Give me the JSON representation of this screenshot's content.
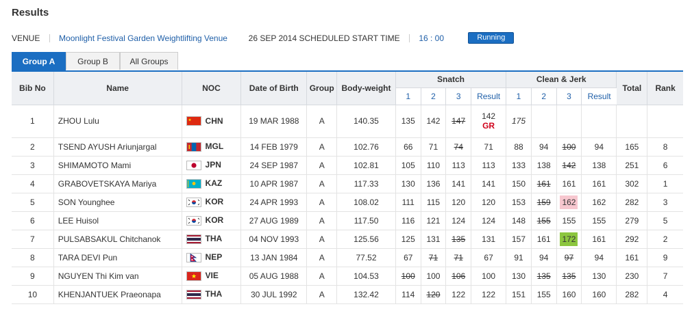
{
  "page": {
    "title": "Results"
  },
  "venue": {
    "label": "VENUE",
    "name": "Moonlight Festival Garden Weightlifting Venue",
    "date_text": "26 SEP 2014 SCHEDULED START TIME",
    "start_time": "16 : 00",
    "status": "Running"
  },
  "tabs": [
    {
      "label": "Group A",
      "active": true
    },
    {
      "label": "Group B",
      "active": false
    },
    {
      "label": "All Groups",
      "active": false
    }
  ],
  "headers": {
    "bib": "Bib No",
    "name": "Name",
    "noc": "NOC",
    "dob": "Date of Birth",
    "group": "Group",
    "bodyweight": "Body-weight",
    "snatch": "Snatch",
    "cj": "Clean & Jerk",
    "total": "Total",
    "rank": "Rank",
    "a1": "1",
    "a2": "2",
    "a3": "3",
    "result": "Result"
  },
  "rows": [
    {
      "bib": "1",
      "name": "ZHOU Lulu",
      "noc": "CHN",
      "flag": "chn",
      "dob": "19 MAR 1988",
      "group": "A",
      "bw": "140.35",
      "s1": "135",
      "s2": "142",
      "s3": "147",
      "s3_fail": true,
      "s_res": "142",
      "s_record": "GR",
      "c1": "175",
      "c1_italic": true,
      "c2": "",
      "c3": "",
      "c_res": "",
      "total": "",
      "rank": ""
    },
    {
      "bib": "2",
      "name": "TSEND AYUSH Ariunjargal",
      "noc": "MGL",
      "flag": "mgl",
      "dob": "14 FEB 1979",
      "group": "A",
      "bw": "102.76",
      "s1": "66",
      "s2": "71",
      "s3": "74",
      "s3_fail": true,
      "s_res": "71",
      "c1": "88",
      "c2": "94",
      "c3": "100",
      "c3_fail": true,
      "c_res": "94",
      "total": "165",
      "rank": "8"
    },
    {
      "bib": "3",
      "name": "SHIMAMOTO Mami",
      "noc": "JPN",
      "flag": "jpn",
      "dob": "24 SEP 1987",
      "group": "A",
      "bw": "102.81",
      "s1": "105",
      "s2": "110",
      "s3": "113",
      "s_res": "113",
      "c1": "133",
      "c2": "138",
      "c3": "142",
      "c3_fail": true,
      "c_res": "138",
      "total": "251",
      "rank": "6"
    },
    {
      "bib": "4",
      "name": "GRABOVETSKAYA Mariya",
      "noc": "KAZ",
      "flag": "kaz",
      "dob": "10 APR 1987",
      "group": "A",
      "bw": "117.33",
      "s1": "130",
      "s2": "136",
      "s3": "141",
      "s_res": "141",
      "c1": "150",
      "c2": "161",
      "c2_fail": true,
      "c3": "161",
      "c_res": "161",
      "total": "302",
      "rank": "1"
    },
    {
      "bib": "5",
      "name": "SON Younghee",
      "noc": "KOR",
      "flag": "kor",
      "dob": "24 APR 1993",
      "group": "A",
      "bw": "108.02",
      "s1": "111",
      "s2": "115",
      "s3": "120",
      "s_res": "120",
      "c1": "153",
      "c2": "159",
      "c2_fail": true,
      "c3": "162",
      "c3_hl": "pink",
      "c_res": "162",
      "total": "282",
      "rank": "3"
    },
    {
      "bib": "6",
      "name": "LEE Huisol",
      "noc": "KOR",
      "flag": "kor",
      "dob": "27 AUG 1989",
      "group": "A",
      "bw": "117.50",
      "s1": "116",
      "s2": "121",
      "s3": "124",
      "s_res": "124",
      "c1": "148",
      "c2": "155",
      "c2_fail": true,
      "c3": "155",
      "c_res": "155",
      "total": "279",
      "rank": "5"
    },
    {
      "bib": "7",
      "name": "PULSABSAKUL Chitchanok",
      "noc": "THA",
      "flag": "tha",
      "dob": "04 NOV 1993",
      "group": "A",
      "bw": "125.56",
      "s1": "125",
      "s2": "131",
      "s3": "135",
      "s3_fail": true,
      "s_res": "131",
      "c1": "157",
      "c2": "161",
      "c3": "172",
      "c3_hl": "green",
      "c_res": "161",
      "total": "292",
      "rank": "2"
    },
    {
      "bib": "8",
      "name": "TARA DEVI Pun",
      "noc": "NEP",
      "flag": "nep",
      "dob": "13 JAN 1984",
      "group": "A",
      "bw": "77.52",
      "s1": "67",
      "s2": "71",
      "s2_fail": true,
      "s3": "71",
      "s3_fail": true,
      "s_res": "67",
      "c1": "91",
      "c2": "94",
      "c3": "97",
      "c3_fail": true,
      "c_res": "94",
      "total": "161",
      "rank": "9"
    },
    {
      "bib": "9",
      "name": "NGUYEN Thi Kim van",
      "noc": "VIE",
      "flag": "vie",
      "dob": "05 AUG 1988",
      "group": "A",
      "bw": "104.53",
      "s1": "100",
      "s1_fail": true,
      "s2": "100",
      "s3": "106",
      "s3_fail": true,
      "s_res": "100",
      "c1": "130",
      "c2": "135",
      "c2_fail": true,
      "c3": "135",
      "c3_fail": true,
      "c_res": "130",
      "total": "230",
      "rank": "7"
    },
    {
      "bib": "10",
      "name": "KHENJANTUEK Praeonapa",
      "noc": "THA",
      "flag": "tha",
      "dob": "30 JUL 1992",
      "group": "A",
      "bw": "132.42",
      "s1": "114",
      "s2": "120",
      "s2_fail": true,
      "s3": "122",
      "s_res": "122",
      "c1": "151",
      "c2": "155",
      "c3": "160",
      "c_res": "160",
      "total": "282",
      "rank": "4"
    }
  ]
}
